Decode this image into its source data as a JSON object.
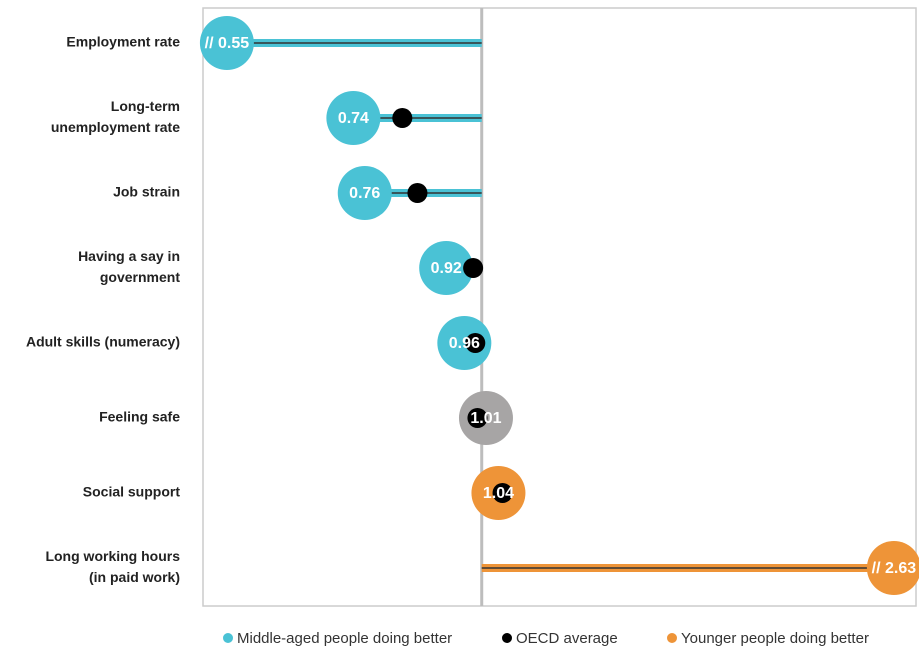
{
  "chart_data": {
    "type": "lollipop",
    "categories": [
      [
        "Employment rate"
      ],
      [
        "Long-term",
        "unemployment rate"
      ],
      [
        "Job strain"
      ],
      [
        "Having a say in",
        "government"
      ],
      [
        "Adult skills (numeracy)"
      ],
      [
        "Feeling safe"
      ],
      [
        "Social support"
      ],
      [
        "Long working hours",
        "(in paid work)"
      ]
    ],
    "values": [
      0.55,
      0.74,
      0.76,
      0.92,
      0.96,
      1.01,
      1.04,
      2.63
    ],
    "value_labels": [
      "// 0.55",
      "0.74",
      "0.76",
      "0.92",
      "0.96",
      "1.01",
      "1.04",
      "// 2.63"
    ],
    "colors": [
      "#4ac2d5",
      "#4ac2d5",
      "#4ac2d5",
      "#4ac2d5",
      "#4ac2d5",
      "#a7a5a5",
      "#ee9438",
      "#ee9438"
    ],
    "oecd_average": {
      "name": "OECD average",
      "color": "#000000",
      "values": [
        null,
        0.83,
        0.86,
        0.98,
        0.985,
        0.99,
        1.05,
        null
      ]
    },
    "reference_line": 1,
    "xlim": [
      0.52,
      2.77
    ],
    "log_scale": true,
    "legend": [
      {
        "name": "Middle-aged people doing better",
        "color": "#4ac2d5"
      },
      {
        "name": "OECD average",
        "color": "#000000"
      },
      {
        "name": "Younger people doing better",
        "color": "#ee9438"
      }
    ]
  }
}
